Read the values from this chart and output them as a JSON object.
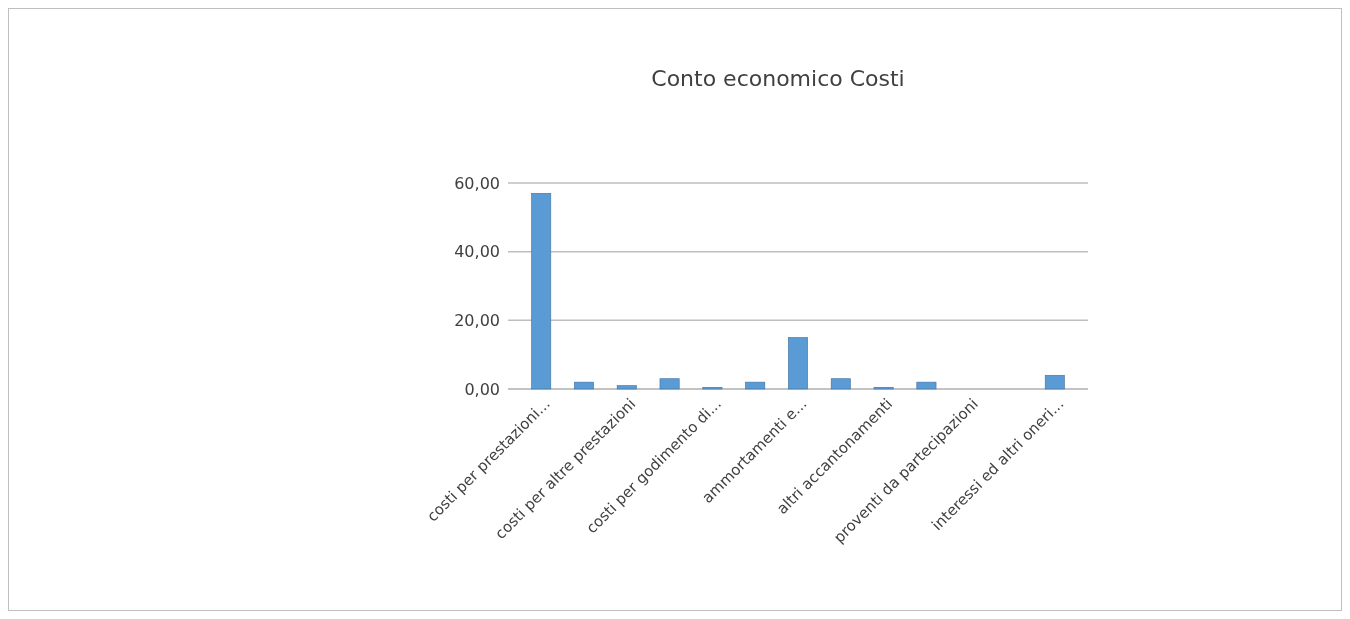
{
  "chart_data": {
    "type": "bar",
    "title": "Conto economico Costi",
    "categories": [
      "costi per prestazioni...",
      null,
      "costi per altre prestazioni",
      null,
      "costi per godimento di...",
      null,
      "ammortamenti e...",
      null,
      "altri accantonamenti",
      null,
      "proventi da partecipazioni",
      null,
      "interessi ed altri oneri..."
    ],
    "values": [
      57,
      2,
      1,
      3,
      0.5,
      2,
      15,
      3,
      0.5,
      2,
      0,
      0,
      4
    ],
    "color": "#5b9bd5",
    "ylim": [
      0,
      60
    ],
    "yticks": [
      {
        "value": 0,
        "label": "0,00"
      },
      {
        "value": 20,
        "label": "20,00"
      },
      {
        "value": 40,
        "label": "40,00"
      },
      {
        "value": 60,
        "label": "60,00"
      }
    ],
    "grid": true
  }
}
